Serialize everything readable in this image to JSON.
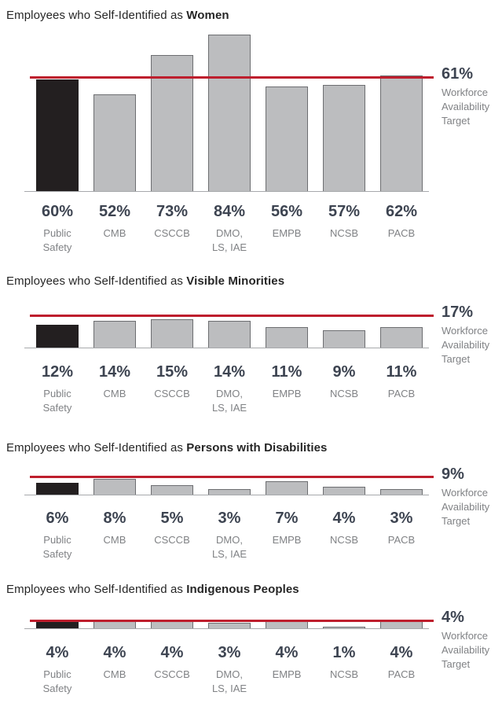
{
  "colors": {
    "target_line": "#be1e2d",
    "bar_fill": "#bcbdbf",
    "bar_border": "#6d6e71",
    "bar_highlight": "#231f20",
    "title_text": "#262626",
    "value_text": "#3d4451",
    "muted_text": "#808285",
    "axis_line": "#a7a9ac"
  },
  "target_note_lines": [
    "Workforce",
    "Availability",
    "Target"
  ],
  "category_display_lines": [
    [
      "Public",
      "Safety"
    ],
    [
      "CMB"
    ],
    [
      "CSCCB"
    ],
    [
      "DMO,",
      "LS, IAE"
    ],
    [
      "EMPB"
    ],
    [
      "NCSB"
    ],
    [
      "PACB"
    ]
  ],
  "chart_data": [
    {
      "type": "bar",
      "title": {
        "prefix": "Employees who Self-Identified as ",
        "emphasis": "Women"
      },
      "categories": [
        "Public Safety",
        "CMB",
        "CSCCB",
        "DMO, LS, IAE",
        "EMPB",
        "NCSB",
        "PACB"
      ],
      "values": [
        60,
        52,
        73,
        84,
        56,
        57,
        62
      ],
      "value_labels": [
        "60%",
        "52%",
        "73%",
        "84%",
        "56%",
        "57%",
        "62%"
      ],
      "unit": "%",
      "target": 61,
      "target_label": "61%",
      "target_note": "Workforce Availability Target",
      "highlight_index": 0,
      "highlight_category": "Public Safety",
      "legend_position": "none",
      "grid": false
    },
    {
      "type": "bar",
      "title": {
        "prefix": "Employees who Self-Identified as ",
        "emphasis": "Visible Minorities"
      },
      "categories": [
        "Public Safety",
        "CMB",
        "CSCCB",
        "DMO, LS, IAE",
        "EMPB",
        "NCSB",
        "PACB"
      ],
      "values": [
        12,
        14,
        15,
        14,
        11,
        9,
        11
      ],
      "value_labels": [
        "12%",
        "14%",
        "15%",
        "14%",
        "11%",
        "9%",
        "11%"
      ],
      "unit": "%",
      "target": 17,
      "target_label": "17%",
      "target_note": "Workforce Availability Target",
      "highlight_index": 0,
      "highlight_category": "Public Safety",
      "legend_position": "none",
      "grid": false
    },
    {
      "type": "bar",
      "title": {
        "prefix": "Employees who Self-Identified as ",
        "emphasis": "Persons with Disabilities"
      },
      "categories": [
        "Public Safety",
        "CMB",
        "CSCCB",
        "DMO, LS, IAE",
        "EMPB",
        "NCSB",
        "PACB"
      ],
      "values": [
        6,
        8,
        5,
        3,
        7,
        4,
        3
      ],
      "value_labels": [
        "6%",
        "8%",
        "5%",
        "3%",
        "7%",
        "4%",
        "3%"
      ],
      "unit": "%",
      "target": 9,
      "target_label": "9%",
      "target_note": "Workforce Availability Target",
      "highlight_index": 0,
      "highlight_category": "Public Safety",
      "legend_position": "none",
      "grid": false
    },
    {
      "type": "bar",
      "title": {
        "prefix": "Employees who Self-Identified as ",
        "emphasis": "Indigenous Peoples"
      },
      "categories": [
        "Public Safety",
        "CMB",
        "CSCCB",
        "DMO, LS, IAE",
        "EMPB",
        "NCSB",
        "PACB"
      ],
      "values": [
        4,
        4,
        4,
        3,
        4,
        1,
        4
      ],
      "value_labels": [
        "4%",
        "4%",
        "4%",
        "3%",
        "4%",
        "1%",
        "4%"
      ],
      "unit": "%",
      "target": 4,
      "target_label": "4%",
      "target_note": "Workforce Availability Target",
      "highlight_index": 0,
      "highlight_category": "Public Safety",
      "legend_position": "none",
      "grid": false
    }
  ]
}
